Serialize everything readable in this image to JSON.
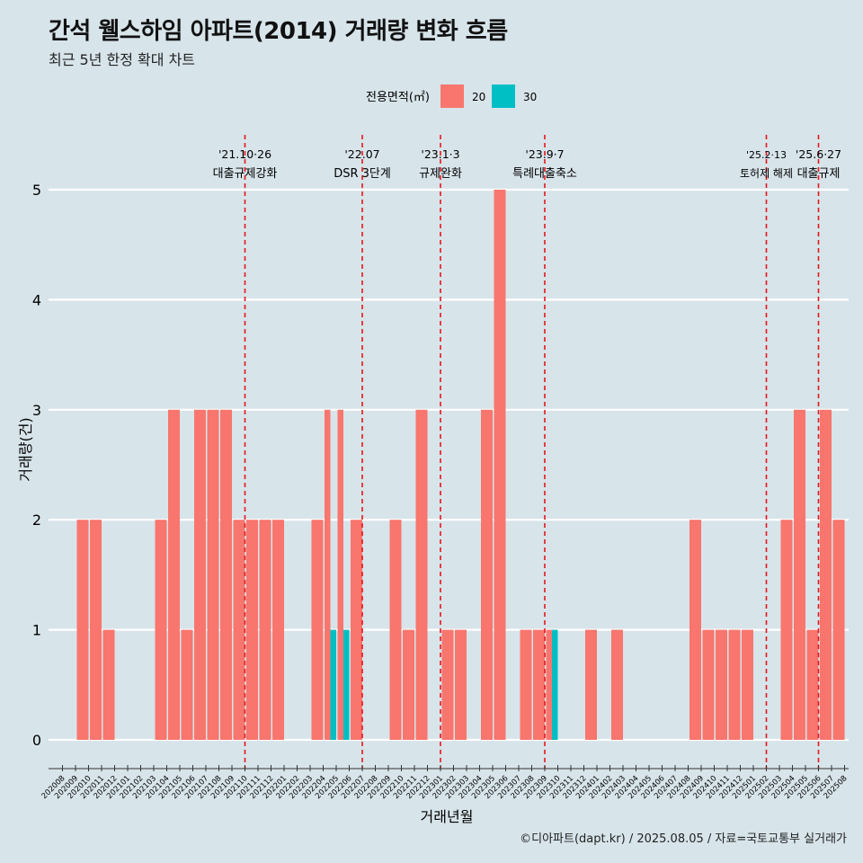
{
  "title": "간석 웰스하임 아파트(2014) 거래량 변화 흐름",
  "subtitle": "최근 5년 한정 확대 차트",
  "credit": "©디아파트(dapt.kr) / 2025.08.05 / 자료=국토교통부 실거래가",
  "colors": {
    "background": "#d7e4ea",
    "series_20": "#f8766d",
    "series_30": "#00bfc4",
    "grid": "#ffffff",
    "event_line": "#e8141b"
  },
  "chart_data": {
    "type": "bar",
    "stacked": true,
    "xlabel": "거래년월",
    "ylabel": "거래량(건)",
    "ylim": [
      0,
      5
    ],
    "y_ticks": [
      0,
      1,
      2,
      3,
      4,
      5
    ],
    "grid": true,
    "legend": {
      "title": "전용면적(㎡)",
      "position": "top",
      "entries": [
        "20",
        "30"
      ]
    },
    "categories": [
      "202008",
      "202009",
      "202010",
      "202011",
      "202012",
      "202101",
      "202102",
      "202103",
      "202104",
      "202105",
      "202106",
      "202107",
      "202108",
      "202109",
      "202110",
      "202111",
      "202112",
      "202201",
      "202202",
      "202203",
      "202204",
      "202205",
      "202206",
      "202207",
      "202208",
      "202209",
      "202210",
      "202211",
      "202212",
      "202301",
      "202302",
      "202303",
      "202304",
      "202305",
      "202306",
      "202307",
      "202308",
      "202309",
      "202310",
      "202311",
      "202312",
      "202401",
      "202402",
      "202403",
      "202404",
      "202405",
      "202406",
      "202407",
      "202408",
      "202409",
      "202410",
      "202411",
      "202412",
      "202501",
      "202502",
      "202503",
      "202504",
      "202505",
      "202506",
      "202507",
      "202508"
    ],
    "series": [
      {
        "name": "20",
        "values": [
          0,
          2,
          2,
          1,
          0,
          0,
          0,
          2,
          3,
          1,
          3,
          3,
          3,
          2,
          2,
          2,
          2,
          0,
          0,
          2,
          3,
          3,
          2,
          0,
          0,
          2,
          1,
          3,
          0,
          1,
          1,
          0,
          3,
          5,
          0,
          1,
          1,
          1,
          0,
          0,
          1,
          0,
          1,
          0,
          0,
          0,
          0,
          0,
          2,
          1,
          1,
          1,
          1,
          0,
          0,
          2,
          3,
          1,
          3,
          2,
          0
        ]
      },
      {
        "name": "30",
        "values": [
          0,
          0,
          0,
          0,
          0,
          0,
          0,
          0,
          0,
          0,
          0,
          0,
          0,
          0,
          0,
          0,
          0,
          0,
          0,
          0,
          1,
          1,
          0,
          0,
          0,
          0,
          0,
          0,
          0,
          0,
          0,
          0,
          0,
          0,
          0,
          0,
          0,
          1,
          0,
          0,
          0,
          0,
          0,
          0,
          0,
          0,
          0,
          0,
          0,
          0,
          0,
          0,
          0,
          0,
          0,
          0,
          0,
          0,
          0,
          0,
          0
        ]
      }
    ],
    "events": [
      {
        "date": "202110",
        "label": "'21.10·26",
        "sublabel": "대출규제강화"
      },
      {
        "date": "202207",
        "label": "'22.07",
        "sublabel": "DSR 3단계"
      },
      {
        "date": "202301",
        "label": "'23.1·3",
        "sublabel": "규제완화"
      },
      {
        "date": "202309",
        "label": "'23.9·7",
        "sublabel": "특례대출축소"
      },
      {
        "date": "202502",
        "label": "'25.2·13",
        "sublabel": "토허제 해제"
      },
      {
        "date": "202506",
        "label": "'25.6·27",
        "sublabel": "대출규제"
      }
    ]
  }
}
